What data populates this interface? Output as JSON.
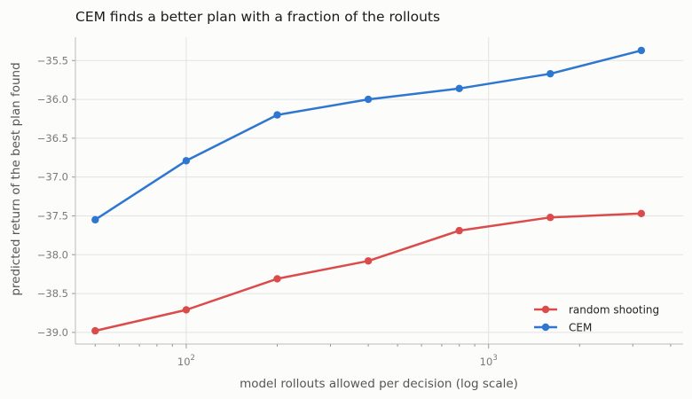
{
  "chart_data": {
    "type": "line",
    "title": "CEM finds a better plan with a fraction of the rollouts",
    "xlabel": "model rollouts allowed per decision (log scale)",
    "ylabel": "predicted return of the best plan found",
    "x_scale": "log",
    "xlim": [
      43,
      4400
    ],
    "ylim": [
      -39.15,
      -35.2
    ],
    "x_major_ticks": [
      100,
      1000
    ],
    "x_major_labels": [
      {
        "base": "10",
        "exp": "2"
      },
      {
        "base": "10",
        "exp": "3"
      }
    ],
    "y_ticks": [
      -39.0,
      -38.5,
      -38.0,
      -37.5,
      -37.0,
      -36.5,
      -36.0,
      -35.5
    ],
    "y_tick_labels": [
      "−39.0",
      "−38.5",
      "−38.0",
      "−37.5",
      "−37.0",
      "−36.5",
      "−36.0",
      "−35.5"
    ],
    "grid": true,
    "legend_position": "bottom-right",
    "x": [
      50,
      100,
      200,
      400,
      800,
      1600,
      3200
    ],
    "series": [
      {
        "name": "random shooting",
        "color": "#dc4b4b",
        "values": [
          -38.98,
          -38.71,
          -38.31,
          -38.08,
          -37.69,
          -37.52,
          -37.47
        ]
      },
      {
        "name": "CEM",
        "color": "#2e77d0",
        "values": [
          -37.55,
          -36.79,
          -36.2,
          -36.0,
          -35.86,
          -35.67,
          -35.37
        ]
      }
    ]
  }
}
